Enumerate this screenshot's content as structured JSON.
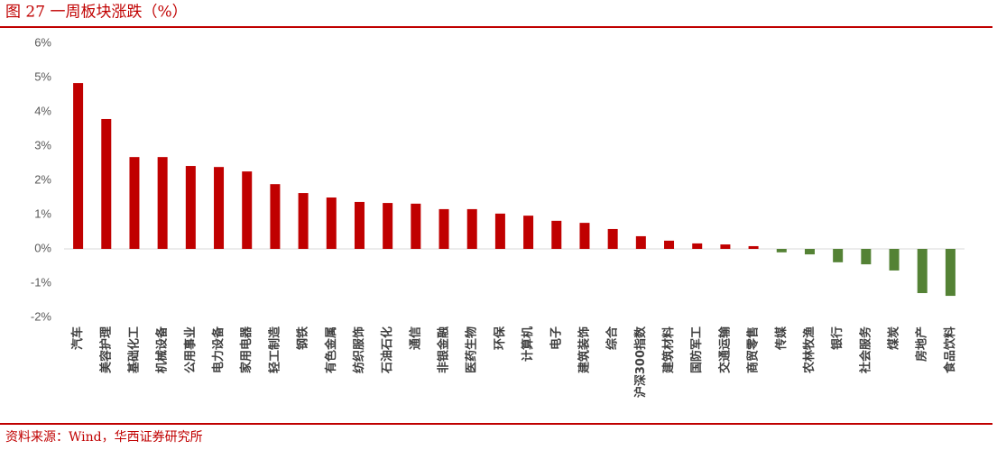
{
  "chart_data": {
    "type": "bar",
    "title": "图 27 一周板块涨跌（%）",
    "source": "资料来源：Wind，华西证券研究所",
    "categories": [
      "汽车",
      "美容护理",
      "基础化工",
      "机械设备",
      "公用事业",
      "电力设备",
      "家用电器",
      "轻工制造",
      "钢铁",
      "有色金属",
      "纺织服饰",
      "石油石化",
      "通信",
      "非银金融",
      "医药生物",
      "环保",
      "计算机",
      "电子",
      "建筑装饰",
      "综合",
      "沪深300指数",
      "建筑材料",
      "国防军工",
      "交通运输",
      "商贸零售",
      "传媒",
      "农林牧渔",
      "银行",
      "社会服务",
      "煤炭",
      "房地产",
      "食品饮料"
    ],
    "values": [
      4.84,
      3.79,
      2.68,
      2.68,
      2.42,
      2.39,
      2.26,
      1.89,
      1.63,
      1.5,
      1.37,
      1.34,
      1.32,
      1.16,
      1.16,
      1.03,
      0.97,
      0.82,
      0.76,
      0.58,
      0.37,
      0.24,
      0.16,
      0.13,
      0.08,
      -0.1,
      -0.16,
      -0.39,
      -0.45,
      -0.63,
      -1.29,
      -1.37
    ],
    "color": "#c00000",
    "negative_color": "#548235",
    "ylim": [
      -2,
      6
    ],
    "yticks": [
      {
        "value": -2,
        "label": "-2%"
      },
      {
        "value": -1,
        "label": "-1%"
      },
      {
        "value": 0,
        "label": "0%"
      },
      {
        "value": 1,
        "label": "1%"
      },
      {
        "value": 2,
        "label": "2%"
      },
      {
        "value": 3,
        "label": "3%"
      },
      {
        "value": 4,
        "label": "4%"
      },
      {
        "value": 5,
        "label": "5%"
      },
      {
        "value": 6,
        "label": "6%"
      }
    ],
    "grid": false
  }
}
